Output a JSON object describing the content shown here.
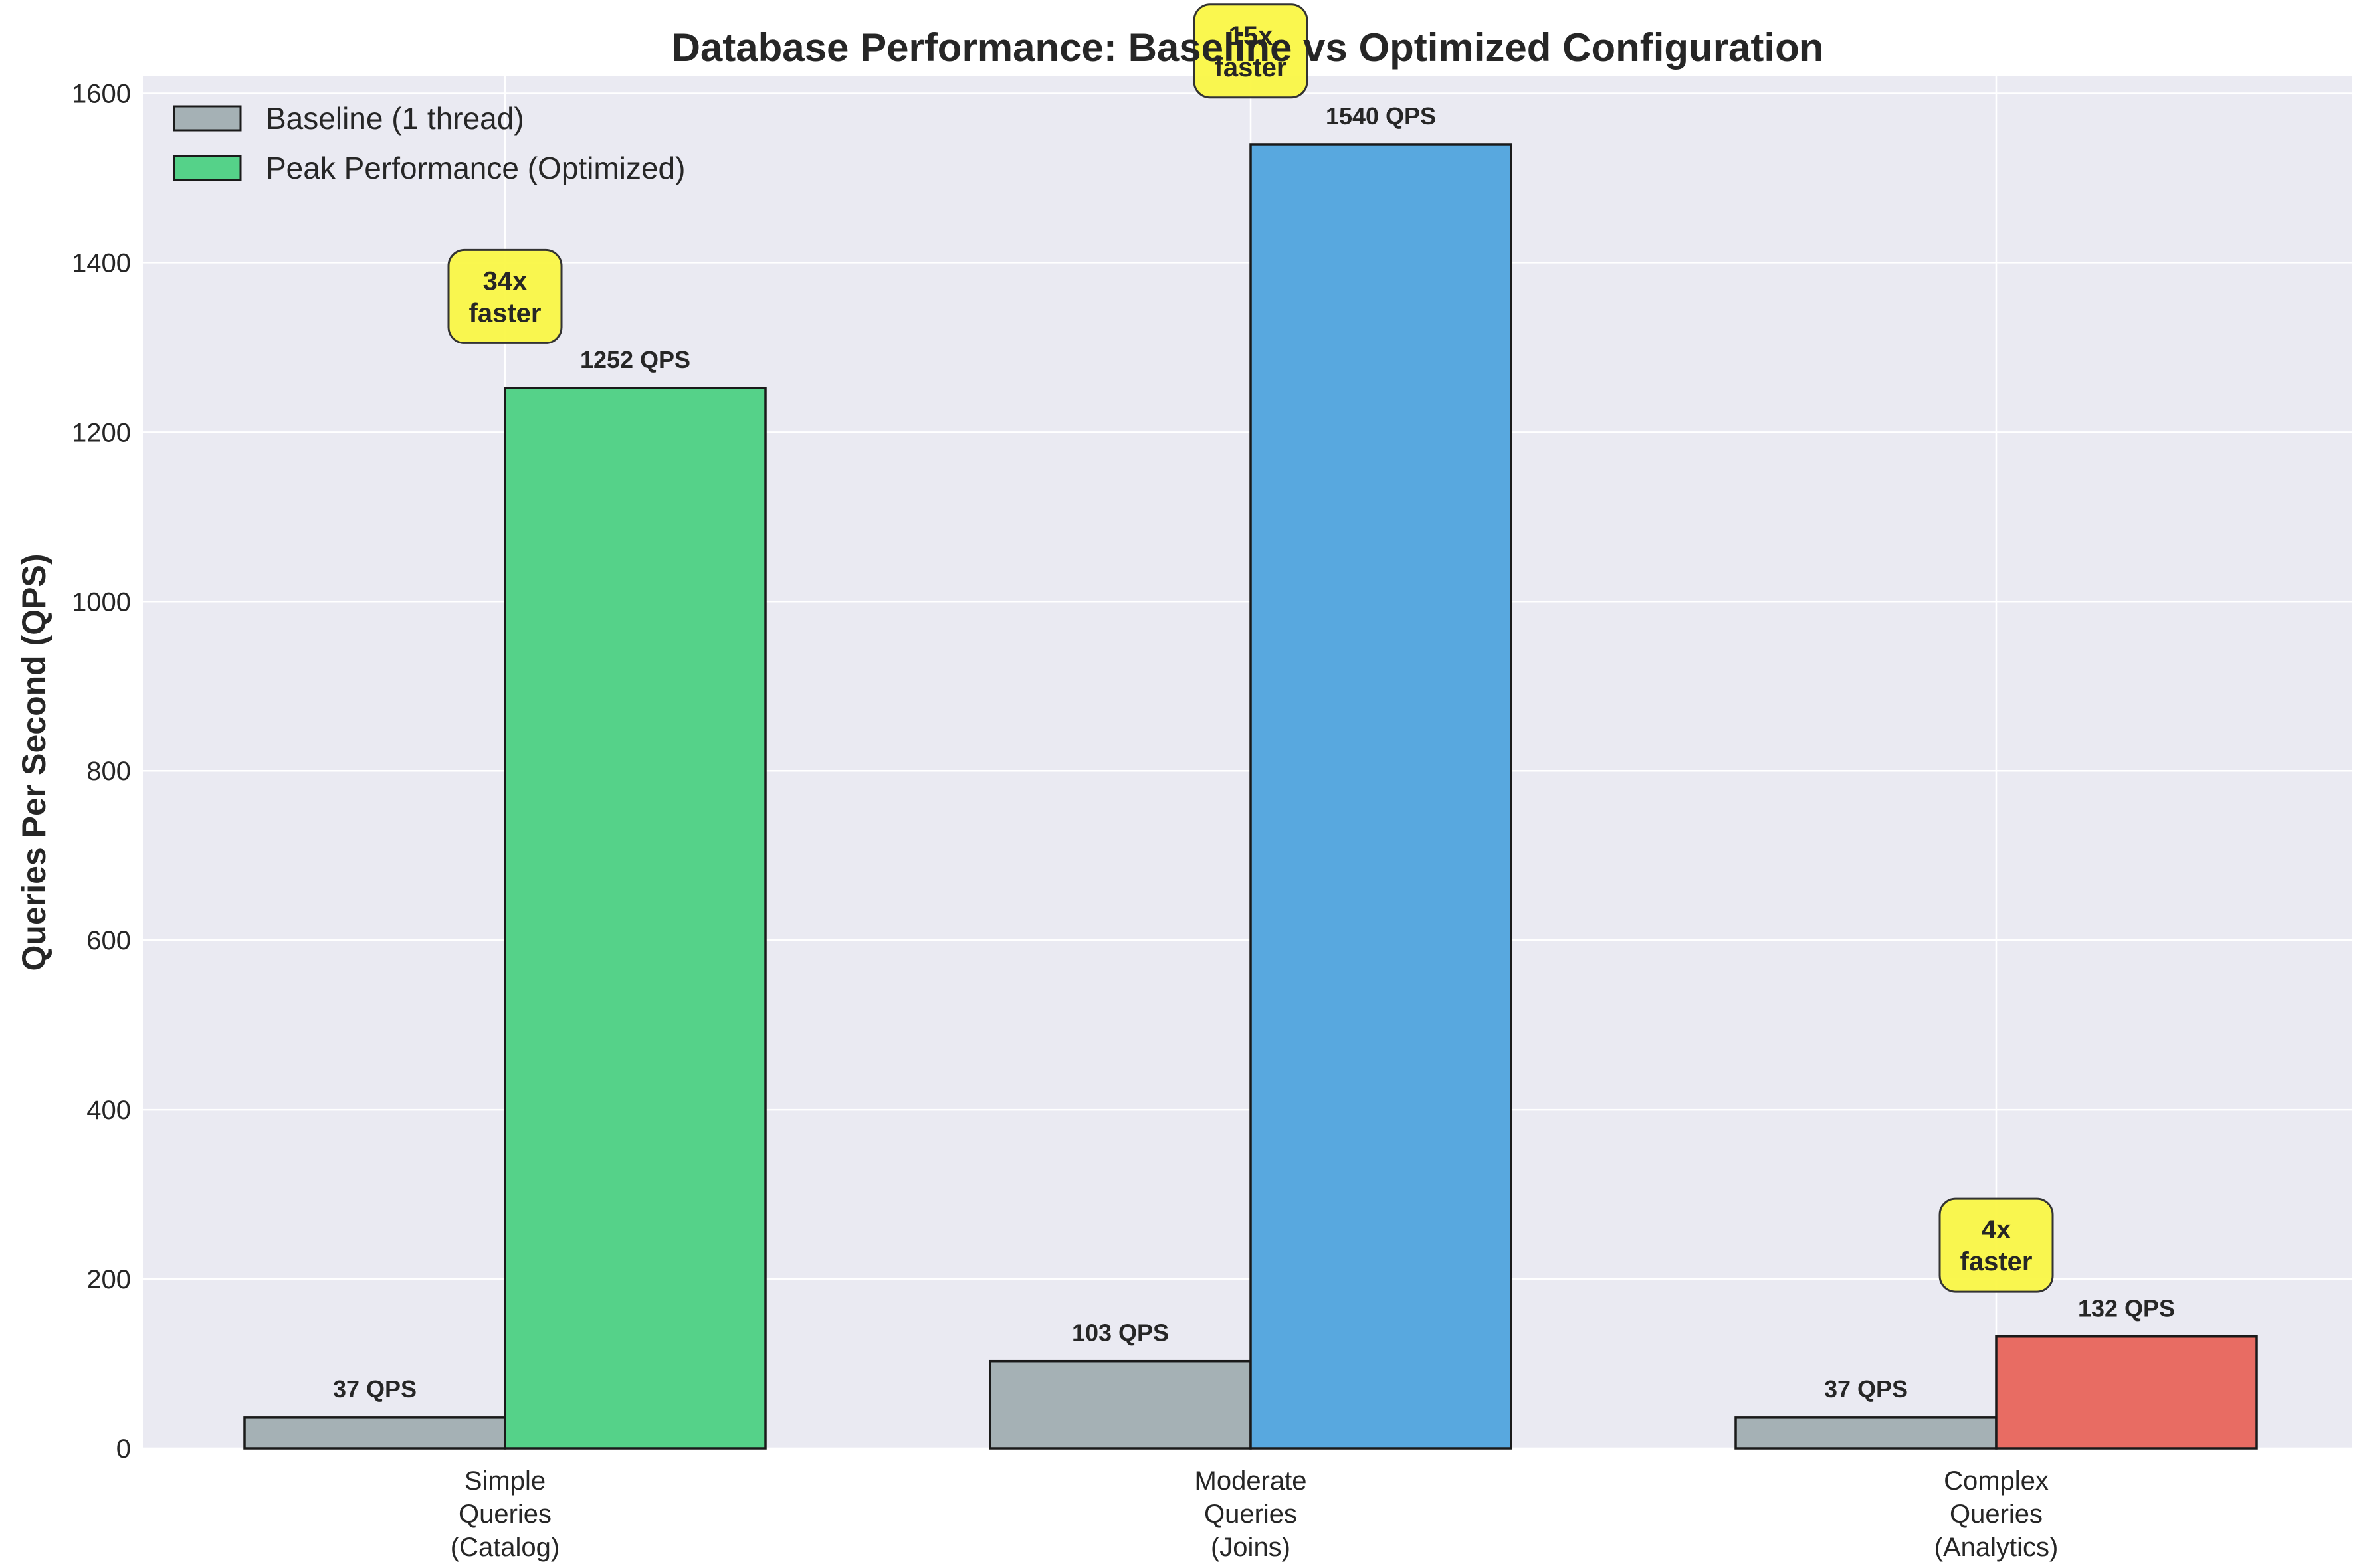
{
  "chart_data": {
    "type": "bar",
    "title": "Database Performance: Baseline vs Optimized Configuration",
    "ylabel": "Queries Per Second (QPS)",
    "xlabel": "",
    "ylim": [
      0,
      1620
    ],
    "yticks": [
      0,
      200,
      400,
      600,
      800,
      1000,
      1200,
      1400,
      1600
    ],
    "grid": true,
    "legend_position": "top-left",
    "categories": [
      [
        "Simple",
        "Queries",
        "(Catalog)"
      ],
      [
        "Moderate",
        "Queries",
        "(Joins)"
      ],
      [
        "Complex",
        "Queries",
        "(Analytics)"
      ]
    ],
    "series": [
      {
        "name": "Baseline (1 thread)",
        "values": [
          37,
          103,
          37
        ],
        "labels": [
          "37 QPS",
          "103 QPS",
          "37 QPS"
        ],
        "colors": [
          "#a5b1b5",
          "#a5b1b5",
          "#a5b1b5"
        ]
      },
      {
        "name": "Peak Performance (Optimized)",
        "values": [
          1252,
          1540,
          132
        ],
        "labels": [
          "1252 QPS",
          "1540 QPS",
          "132 QPS"
        ],
        "colors": [
          "#55d289",
          "#58a8df",
          "#e86c63"
        ]
      }
    ],
    "annotations": [
      {
        "category": 0,
        "lines": [
          "34x",
          "faster"
        ],
        "y": 1360
      },
      {
        "category": 1,
        "lines": [
          "15x",
          "faster"
        ],
        "y": 1650
      },
      {
        "category": 2,
        "lines": [
          "4x",
          "faster"
        ],
        "y": 240
      }
    ],
    "annotation_color": "#faf746",
    "background_color": "#eaeaf2"
  }
}
